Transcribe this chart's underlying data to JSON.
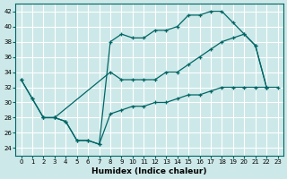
{
  "xlabel": "Humidex (Indice chaleur)",
  "bg_color": "#cde8e8",
  "grid_color": "#b0d4d4",
  "line_color": "#006666",
  "xlim": [
    -0.5,
    23.5
  ],
  "ylim": [
    23,
    43
  ],
  "yticks": [
    24,
    26,
    28,
    30,
    32,
    34,
    36,
    38,
    40,
    42
  ],
  "xticks": [
    0,
    1,
    2,
    3,
    4,
    5,
    6,
    7,
    8,
    9,
    10,
    11,
    12,
    13,
    14,
    15,
    16,
    17,
    18,
    19,
    20,
    21,
    22,
    23
  ],
  "line1_x": [
    0,
    1,
    2,
    3,
    4,
    5,
    6,
    7,
    8,
    9,
    10,
    11,
    12,
    13,
    14,
    15,
    16,
    17,
    18,
    19,
    20,
    21,
    22
  ],
  "line1_y": [
    33,
    30.5,
    28,
    28,
    27.5,
    25,
    25,
    24.5,
    38,
    39,
    38.5,
    38.5,
    39.5,
    39.5,
    40,
    41.5,
    41.5,
    42,
    42,
    40.5,
    39,
    37.5,
    32
  ],
  "line2_x": [
    2,
    3,
    8,
    9,
    10,
    11,
    12,
    13,
    14,
    15,
    16,
    17,
    18,
    19,
    20,
    21,
    22
  ],
  "line2_y": [
    28,
    28,
    34,
    33,
    33,
    33,
    33,
    34,
    34,
    35,
    36,
    37,
    38,
    38.5,
    39,
    37.5,
    32
  ],
  "line3_x": [
    0,
    1,
    2,
    3,
    4,
    5,
    6,
    7,
    8,
    9,
    10,
    11,
    12,
    13,
    14,
    15,
    16,
    17,
    18,
    19,
    20,
    21,
    22,
    23
  ],
  "line3_y": [
    33,
    30.5,
    28,
    28,
    27.5,
    25,
    25,
    24.5,
    28.5,
    29,
    29.5,
    29.5,
    30,
    30,
    30.5,
    31,
    31,
    31.5,
    32,
    32,
    32,
    32,
    32,
    32
  ]
}
